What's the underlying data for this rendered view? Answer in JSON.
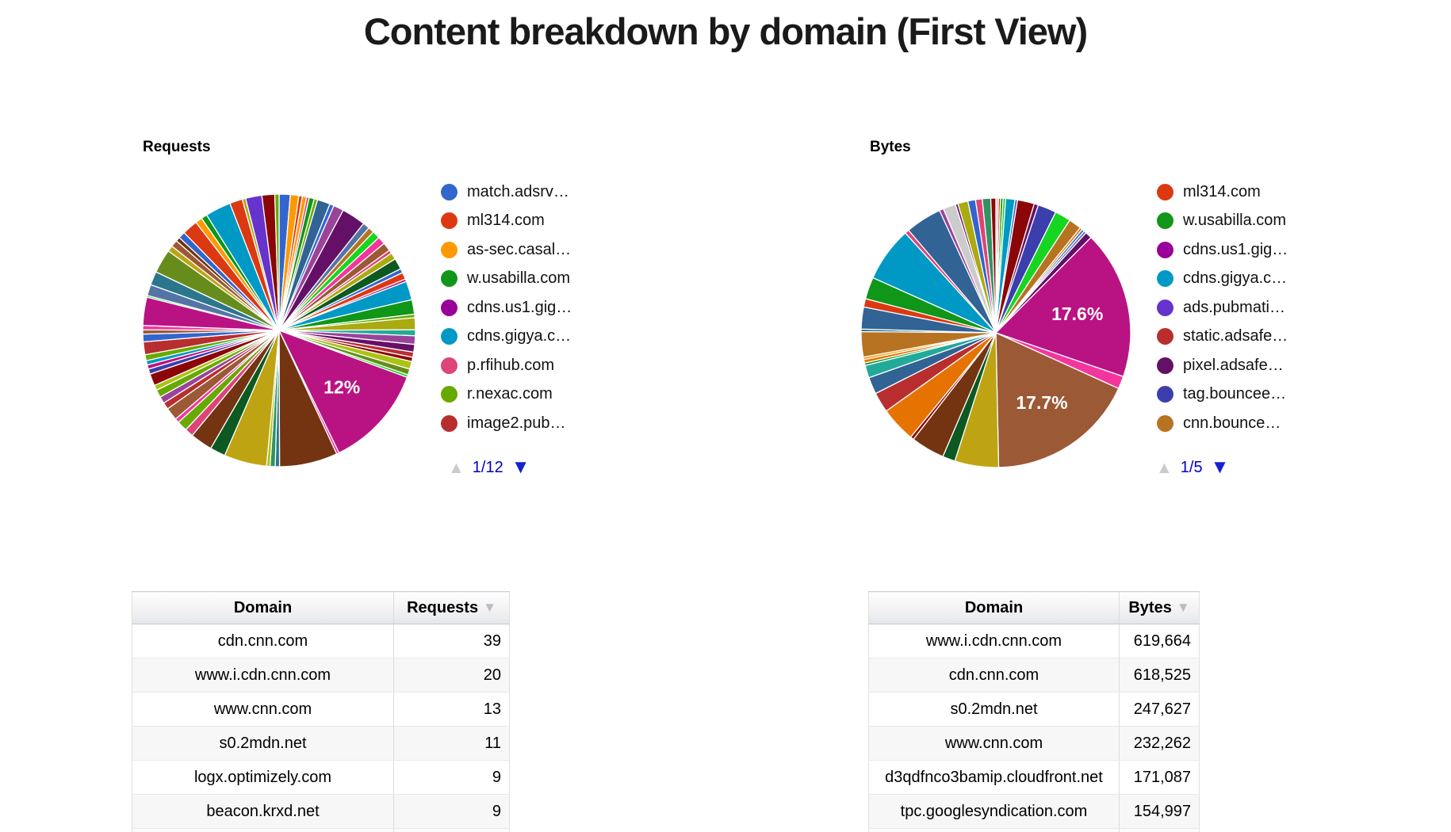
{
  "page": {
    "title": "Content breakdown by domain (First View)"
  },
  "icons": {
    "sort_desc": "▼",
    "legend_page_up": "▲",
    "legend_page_down": "▼"
  },
  "colors": {
    "link_blue": "#0000cc",
    "pager_up_disabled": "#cbcbcb",
    "pager_down_active": "#1420d2",
    "percent_label_text": "#ffffff"
  },
  "chart_data": [
    {
      "type": "pie",
      "title": "Requests",
      "pagination": "1/5-style pager showing 1/12",
      "pager_text": "1/12",
      "legend_position": "right",
      "legend": [
        {
          "label": "match.adsrv…",
          "color": "#3366cc"
        },
        {
          "label": "ml314.com",
          "color": "#dc3912"
        },
        {
          "label": "as-sec.casal…",
          "color": "#ff9900"
        },
        {
          "label": "w.usabilla.com",
          "color": "#109618"
        },
        {
          "label": "cdns.us1.gig…",
          "color": "#990099"
        },
        {
          "label": "cdns.gigya.c…",
          "color": "#0099c6"
        },
        {
          "label": "p.rfihub.com",
          "color": "#dd4477"
        },
        {
          "label": "r.nexac.com",
          "color": "#66aa00"
        },
        {
          "label": "image2.pub…",
          "color": "#b82e2e"
        }
      ],
      "labeled_percentages": [
        "12%"
      ],
      "slice_format": "[percent, color, label?]",
      "slices": [
        [
          1.3,
          "#3366cc"
        ],
        [
          1.0,
          "#ff9900"
        ],
        [
          0.4,
          "#dc3912"
        ],
        [
          0.5,
          "#ff9900"
        ],
        [
          0.3,
          "#dd4477"
        ],
        [
          0.6,
          "#109618"
        ],
        [
          0.4,
          "#66aa00"
        ],
        [
          1.5,
          "#316395"
        ],
        [
          0.5,
          "#3366cc"
        ],
        [
          1.2,
          "#994499"
        ],
        [
          2.8,
          "#651067"
        ],
        [
          0.8,
          "#5574a6"
        ],
        [
          0.7,
          "#b77322"
        ],
        [
          0.9,
          "#16d620"
        ],
        [
          0.9,
          "#f4359e"
        ],
        [
          1.0,
          "#9c5935"
        ],
        [
          0.4,
          "#dd4477"
        ],
        [
          0.8,
          "#aaaa11"
        ],
        [
          1.3,
          "#0c5922"
        ],
        [
          0.5,
          "#3366cc"
        ],
        [
          0.8,
          "#dc3912"
        ],
        [
          0.3,
          "#b91383"
        ],
        [
          2.2,
          "#0099c6"
        ],
        [
          1.7,
          "#109618"
        ],
        [
          0.4,
          "#66aa00"
        ],
        [
          1.4,
          "#aaaa11"
        ],
        [
          0.7,
          "#22aa99"
        ],
        [
          1.0,
          "#994499"
        ],
        [
          0.9,
          "#651067"
        ],
        [
          0.6,
          "#b82e2e"
        ],
        [
          0.5,
          "#8b0707"
        ],
        [
          0.9,
          "#a9c413"
        ],
        [
          0.7,
          "#668d1c"
        ],
        [
          0.3,
          "#16d620"
        ],
        [
          12.0,
          "#b91383",
          "12%"
        ],
        [
          0.3,
          "#f4359e"
        ],
        [
          6.8,
          "#743411"
        ],
        [
          0.5,
          "#2a778d"
        ],
        [
          0.6,
          "#329262"
        ],
        [
          0.4,
          "#a9c413"
        ],
        [
          5.0,
          "#bea413"
        ],
        [
          1.8,
          "#0c5922"
        ],
        [
          2.6,
          "#743411"
        ],
        [
          1.0,
          "#dd4477"
        ],
        [
          1.2,
          "#66aa00"
        ],
        [
          0.5,
          "#f4359e"
        ],
        [
          1.5,
          "#9c5935"
        ],
        [
          0.8,
          "#b82e2e"
        ],
        [
          0.8,
          "#994499"
        ],
        [
          0.9,
          "#66aa00"
        ],
        [
          0.6,
          "#a9c413"
        ],
        [
          1.4,
          "#8b0707"
        ],
        [
          0.6,
          "#3b3eac"
        ],
        [
          0.5,
          "#b91383"
        ],
        [
          0.5,
          "#0099c6"
        ],
        [
          0.7,
          "#66aa00"
        ],
        [
          1.5,
          "#b82e2e"
        ],
        [
          0.9,
          "#3366cc"
        ],
        [
          0.5,
          "#9c5935"
        ],
        [
          0.5,
          "#f4359e"
        ],
        [
          3.3,
          "#b91383"
        ],
        [
          0.2,
          "#16d620"
        ],
        [
          1.3,
          "#5574a6"
        ],
        [
          1.6,
          "#2a778d"
        ],
        [
          2.8,
          "#668d1c"
        ],
        [
          0.7,
          "#bea413"
        ],
        [
          0.8,
          "#9c5935"
        ],
        [
          0.5,
          "#743411"
        ],
        [
          0.8,
          "#3366cc"
        ],
        [
          1.8,
          "#dc3912"
        ],
        [
          0.8,
          "#ff9900"
        ],
        [
          0.7,
          "#109618"
        ],
        [
          3.0,
          "#0099c6"
        ],
        [
          1.5,
          "#dc3912"
        ],
        [
          0.4,
          "#aaaa11"
        ],
        [
          1.9,
          "#6633cc"
        ],
        [
          1.5,
          "#8b0707"
        ],
        [
          0.5,
          "#66aa00"
        ]
      ]
    },
    {
      "type": "pie",
      "title": "Bytes",
      "pager_text": "1/5",
      "legend_position": "right",
      "legend": [
        {
          "label": "ml314.com",
          "color": "#dc3912"
        },
        {
          "label": "w.usabilla.com",
          "color": "#109618"
        },
        {
          "label": "cdns.us1.gig…",
          "color": "#990099"
        },
        {
          "label": "cdns.gigya.c…",
          "color": "#0099c6"
        },
        {
          "label": "ads.pubmati…",
          "color": "#6633cc"
        },
        {
          "label": "static.adsafe…",
          "color": "#b82e2e"
        },
        {
          "label": "pixel.adsafe…",
          "color": "#651067"
        },
        {
          "label": "tag.bouncee…",
          "color": "#3b3eac"
        },
        {
          "label": "cnn.bounce…",
          "color": "#b77322"
        }
      ],
      "labeled_percentages": [
        "17.6%",
        "17.7%"
      ],
      "slice_format": "[percent, color, label?]",
      "slices": [
        [
          0.3,
          "#cccccc"
        ],
        [
          0.25,
          "#dc3912"
        ],
        [
          0.3,
          "#109618"
        ],
        [
          0.3,
          "#16d620"
        ],
        [
          1.1,
          "#0099c6"
        ],
        [
          0.3,
          "#3366cc"
        ],
        [
          2.0,
          "#8b0707"
        ],
        [
          0.5,
          "#651067"
        ],
        [
          2.2,
          "#3b3eac"
        ],
        [
          1.9,
          "#16d620"
        ],
        [
          1.5,
          "#b77322"
        ],
        [
          0.3,
          "#e67300"
        ],
        [
          0.3,
          "#3366cc"
        ],
        [
          0.3,
          "#5574a6"
        ],
        [
          0.8,
          "#651067"
        ],
        [
          17.6,
          "#b91383",
          "17.6%"
        ],
        [
          1.5,
          "#f4359e"
        ],
        [
          17.7,
          "#9c5935",
          "17.7%"
        ],
        [
          5.2,
          "#bea413"
        ],
        [
          1.5,
          "#0c5922"
        ],
        [
          4.0,
          "#743411"
        ],
        [
          0.4,
          "#8b0707"
        ],
        [
          4.2,
          "#e67300"
        ],
        [
          2.4,
          "#b82e2e"
        ],
        [
          2.0,
          "#316395"
        ],
        [
          1.5,
          "#22aa99"
        ],
        [
          0.3,
          "#109618"
        ],
        [
          0.4,
          "#e67300"
        ],
        [
          0.3,
          "#ff9900"
        ],
        [
          3.0,
          "#b77322"
        ],
        [
          0.3,
          "#2a778d"
        ],
        [
          2.6,
          "#316395"
        ],
        [
          1.0,
          "#dc3912"
        ],
        [
          2.6,
          "#109618"
        ],
        [
          6.5,
          "#0099c6"
        ],
        [
          0.5,
          "#dd4477"
        ],
        [
          4.3,
          "#316395"
        ],
        [
          0.5,
          "#994499"
        ],
        [
          1.5,
          "#cccccc"
        ],
        [
          0.3,
          "#651067"
        ],
        [
          1.2,
          "#aaaa11"
        ],
        [
          0.9,
          "#3366cc"
        ],
        [
          0.8,
          "#dd4477"
        ],
        [
          1.0,
          "#329262"
        ],
        [
          0.6,
          "#8b0707"
        ]
      ]
    },
    {
      "type": "table",
      "columns": [
        "Domain",
        "Requests"
      ],
      "sort": {
        "column": "Requests",
        "direction": "desc"
      },
      "rows": [
        [
          "cdn.cnn.com",
          "39"
        ],
        [
          "www.i.cdn.cnn.com",
          "20"
        ],
        [
          "www.cnn.com",
          "13"
        ],
        [
          "s0.2mdn.net",
          "11"
        ],
        [
          "logx.optimizely.com",
          "9"
        ],
        [
          "beacon.krxd.net",
          "9"
        ]
      ]
    },
    {
      "type": "table",
      "columns": [
        "Domain",
        "Bytes"
      ],
      "sort": {
        "column": "Bytes",
        "direction": "desc"
      },
      "rows": [
        [
          "www.i.cdn.cnn.com",
          "619,664"
        ],
        [
          "cdn.cnn.com",
          "618,525"
        ],
        [
          "s0.2mdn.net",
          "247,627"
        ],
        [
          "www.cnn.com",
          "232,262"
        ],
        [
          "d3qdfnco3bamip.cloudfront.net",
          "171,087"
        ],
        [
          "tpc.googlesyndication.com",
          "154,997"
        ]
      ]
    }
  ]
}
